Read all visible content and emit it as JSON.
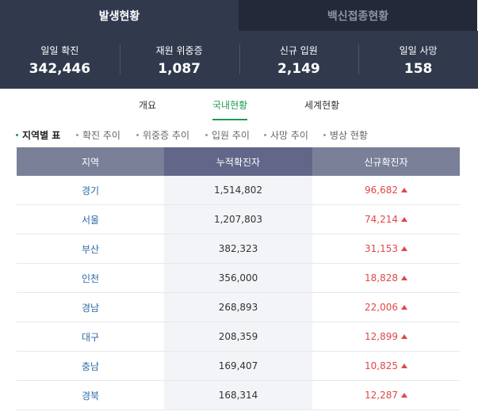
{
  "top_tabs": [
    {
      "label": "발생현황",
      "active": true
    },
    {
      "label": "백신접종현황",
      "active": false
    }
  ],
  "stats": [
    {
      "label": "일일 확진",
      "value": "342,446"
    },
    {
      "label": "재원 위중증",
      "value": "1,087"
    },
    {
      "label": "신규 입원",
      "value": "2,149"
    },
    {
      "label": "일일 사망",
      "value": "158"
    }
  ],
  "sub_tabs": [
    {
      "label": "개요",
      "active": false
    },
    {
      "label": "국내현황",
      "active": true
    },
    {
      "label": "세계현황",
      "active": false
    }
  ],
  "filters": [
    {
      "label": "지역별 표",
      "active": true
    },
    {
      "label": "확진 추이",
      "active": false
    },
    {
      "label": "위중증 추이",
      "active": false
    },
    {
      "label": "입원 추이",
      "active": false
    },
    {
      "label": "사망 추이",
      "active": false
    },
    {
      "label": "병상 현황",
      "active": false
    }
  ],
  "table": {
    "headers": [
      "지역",
      "누적확진자",
      "신규확진자"
    ],
    "rows": [
      {
        "region": "경기",
        "total": "1,514,802",
        "new": "96,682"
      },
      {
        "region": "서울",
        "total": "1,207,803",
        "new": "74,214"
      },
      {
        "region": "부산",
        "total": "382,323",
        "new": "31,153"
      },
      {
        "region": "인천",
        "total": "356,000",
        "new": "18,828"
      },
      {
        "region": "경남",
        "total": "268,893",
        "new": "22,006"
      },
      {
        "region": "대구",
        "total": "208,359",
        "new": "12,899"
      },
      {
        "region": "충남",
        "total": "169,407",
        "new": "10,825"
      },
      {
        "region": "경북",
        "total": "168,314",
        "new": "12,287"
      }
    ]
  },
  "colors": {
    "header_bg": "#313a4d",
    "accent_green": "#1d9a55",
    "increase_red": "#e14747",
    "region_blue": "#2b6aa8"
  },
  "icons": {
    "increase": "triangle-up-icon"
  }
}
